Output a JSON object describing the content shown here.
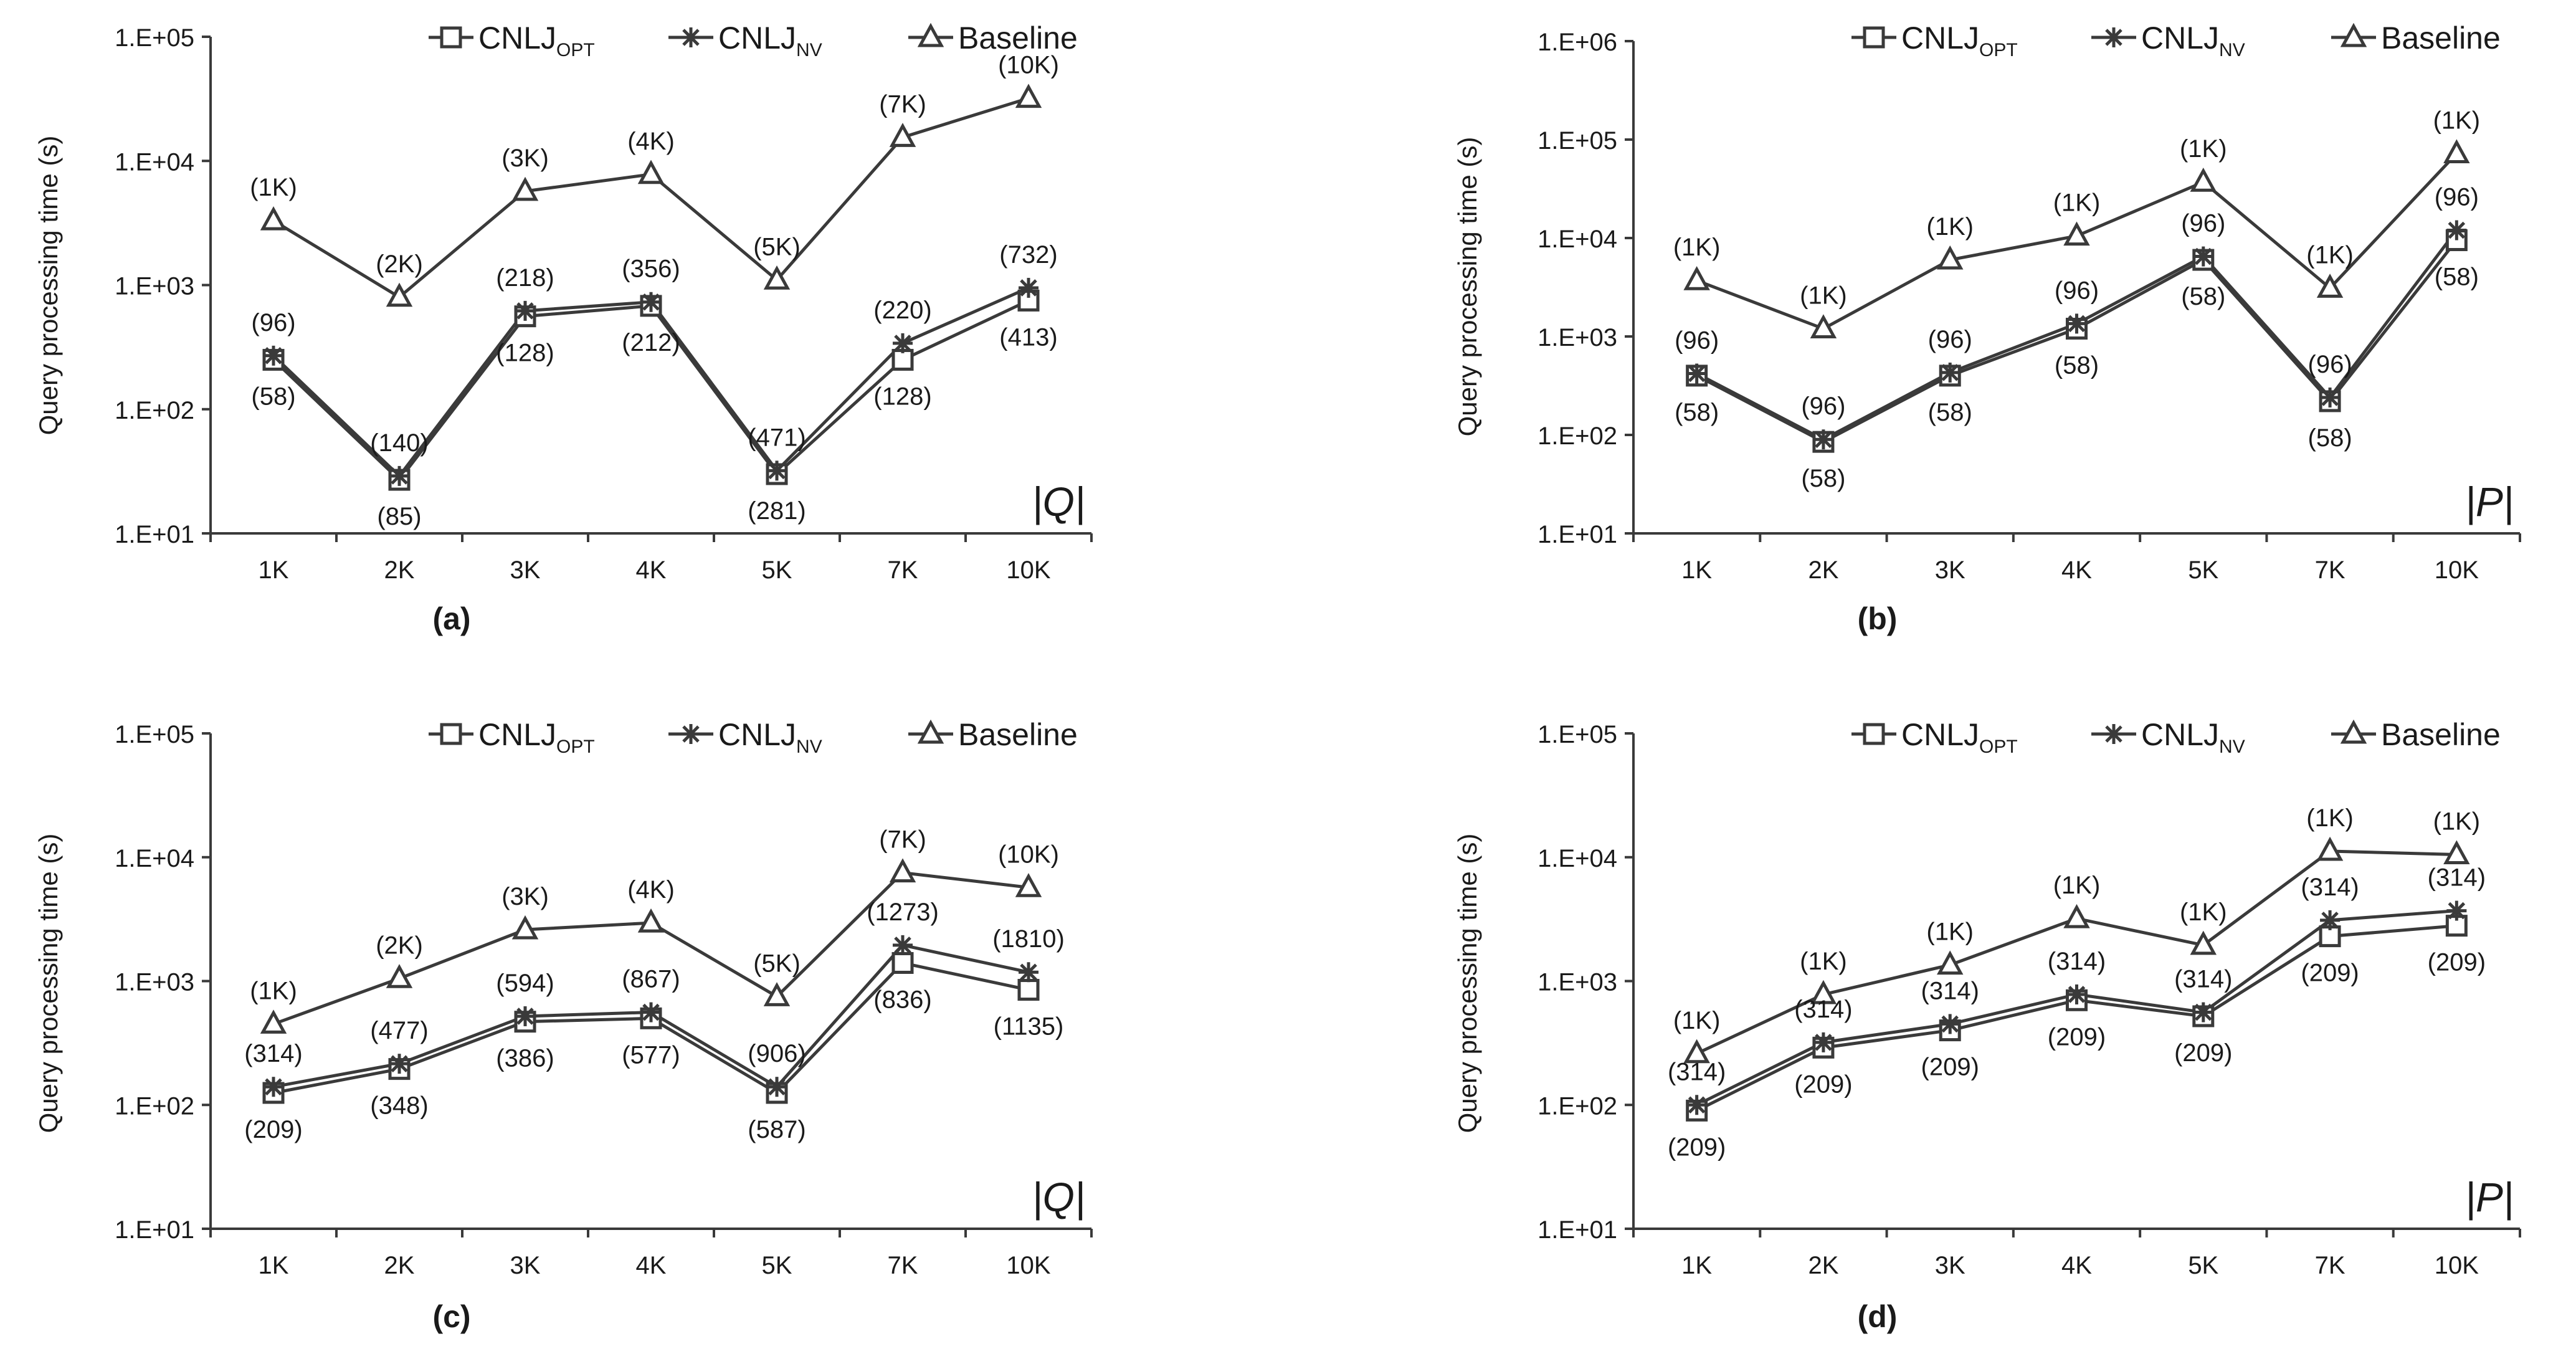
{
  "figure": {
    "line_color": "#3a3a3a",
    "text_color": "#1a1a1a",
    "background": "#ffffff"
  },
  "chart_data": [
    {
      "id": "a",
      "type": "line",
      "scale": "log",
      "panel_label": "(a)",
      "ylabel": "Query processing time (s)",
      "xlabel": "|Q|",
      "categories": [
        "1K",
        "2K",
        "3K",
        "4K",
        "5K",
        "7K",
        "10K"
      ],
      "yticks": [
        "1.E+01",
        "1.E+02",
        "1.E+03",
        "1.E+04",
        "1.E+05"
      ],
      "ylim_exp": [
        1,
        5
      ],
      "legend": [
        {
          "name": "CNLJ",
          "sub": "OPT",
          "marker": "square"
        },
        {
          "name": "CNLJ",
          "sub": "NV",
          "marker": "star"
        },
        {
          "name": "Baseline",
          "sub": "",
          "marker": "triangle"
        }
      ],
      "series": [
        {
          "name": "CNLJ_OPT",
          "marker": "square",
          "values": [
            250,
            27,
            560,
            680,
            30,
            250,
            750
          ]
        },
        {
          "name": "CNLJ_NV",
          "marker": "star",
          "values": [
            270,
            29,
            620,
            730,
            32,
            340,
            950
          ]
        },
        {
          "name": "Baseline",
          "marker": "triangle",
          "values": [
            3300,
            800,
            5700,
            7800,
            1100,
            15500,
            32000
          ]
        }
      ],
      "annotations": {
        "top": [
          "(1K)",
          "(2K)",
          "(3K)",
          "(4K)",
          "(5K)",
          "(7K)",
          "(10K)"
        ],
        "nv": [
          "(96)",
          "(140)",
          "(218)",
          "(356)",
          "(471)",
          "(220)",
          "(732)"
        ],
        "opt": [
          "(58)",
          "(85)",
          "(128)",
          "(212)",
          "(281)",
          "(128)",
          "(413)"
        ]
      }
    },
    {
      "id": "b",
      "type": "line",
      "scale": "log",
      "panel_label": "(b)",
      "ylabel": "Query processing time (s)",
      "xlabel": "|P|",
      "categories": [
        "1K",
        "2K",
        "3K",
        "4K",
        "5K",
        "7K",
        "10K"
      ],
      "yticks": [
        "1.E+01",
        "1.E+02",
        "1.E+03",
        "1.E+04",
        "1.E+05",
        "1.E+06"
      ],
      "ylim_exp": [
        1,
        6
      ],
      "legend": [
        {
          "name": "CNLJ",
          "sub": "OPT",
          "marker": "square"
        },
        {
          "name": "CNLJ",
          "sub": "NV",
          "marker": "star"
        },
        {
          "name": "Baseline",
          "sub": "",
          "marker": "triangle"
        }
      ],
      "series": [
        {
          "name": "CNLJ_OPT",
          "marker": "square",
          "values": [
            400,
            85,
            400,
            1200,
            6000,
            220,
            9500
          ]
        },
        {
          "name": "CNLJ_NV",
          "marker": "star",
          "values": [
            420,
            90,
            430,
            1350,
            6500,
            240,
            12000
          ]
        },
        {
          "name": "Baseline",
          "marker": "triangle",
          "values": [
            3700,
            1200,
            6000,
            10500,
            37000,
            3100,
            72000
          ]
        }
      ],
      "annotations": {
        "top": [
          "(1K)",
          "(1K)",
          "(1K)",
          "(1K)",
          "(1K)",
          "(1K)",
          "(1K)"
        ],
        "nv": [
          "(96)",
          "(96)",
          "(96)",
          "(96)",
          "(96)",
          "(96)",
          "(96)"
        ],
        "opt": [
          "(58)",
          "(58)",
          "(58)",
          "(58)",
          "(58)",
          "(58)",
          "(58)"
        ]
      }
    },
    {
      "id": "c",
      "type": "line",
      "scale": "log",
      "panel_label": "(c)",
      "ylabel": "Query processing time (s)",
      "xlabel": "|Q|",
      "categories": [
        "1K",
        "2K",
        "3K",
        "4K",
        "5K",
        "7K",
        "10K"
      ],
      "yticks": [
        "1.E+01",
        "1.E+02",
        "1.E+03",
        "1.E+04",
        "1.E+05"
      ],
      "ylim_exp": [
        1,
        5
      ],
      "legend": [
        {
          "name": "CNLJ",
          "sub": "OPT",
          "marker": "square"
        },
        {
          "name": "CNLJ",
          "sub": "NV",
          "marker": "star"
        },
        {
          "name": "Baseline",
          "sub": "",
          "marker": "triangle"
        }
      ],
      "series": [
        {
          "name": "CNLJ_OPT",
          "marker": "square",
          "values": [
            125,
            195,
            470,
            500,
            125,
            1400,
            850
          ]
        },
        {
          "name": "CNLJ_NV",
          "marker": "star",
          "values": [
            140,
            215,
            520,
            560,
            140,
            1950,
            1180
          ]
        },
        {
          "name": "Baseline",
          "marker": "triangle",
          "values": [
            450,
            1050,
            2600,
            2950,
            750,
            7500,
            5700
          ]
        }
      ],
      "annotations": {
        "top": [
          "(1K)",
          "(2K)",
          "(3K)",
          "(4K)",
          "(5K)",
          "(7K)",
          "(10K)"
        ],
        "nv": [
          "(314)",
          "(477)",
          "(594)",
          "(867)",
          "(906)",
          "(1273)",
          "(1810)"
        ],
        "opt": [
          "(209)",
          "(348)",
          "(386)",
          "(577)",
          "(587)",
          "(836)",
          "(1135)"
        ]
      }
    },
    {
      "id": "d",
      "type": "line",
      "scale": "log",
      "panel_label": "(d)",
      "ylabel": "Query processing time (s)",
      "xlabel": "|P|",
      "categories": [
        "1K",
        "2K",
        "3K",
        "4K",
        "5K",
        "7K",
        "10K"
      ],
      "yticks": [
        "1.E+01",
        "1.E+02",
        "1.E+03",
        "1.E+04",
        "1.E+05"
      ],
      "ylim_exp": [
        1,
        5
      ],
      "legend": [
        {
          "name": "CNLJ",
          "sub": "OPT",
          "marker": "square"
        },
        {
          "name": "CNLJ",
          "sub": "NV",
          "marker": "star"
        },
        {
          "name": "Baseline",
          "sub": "",
          "marker": "triangle"
        }
      ],
      "series": [
        {
          "name": "CNLJ_OPT",
          "marker": "square",
          "values": [
            90,
            290,
            400,
            700,
            520,
            2300,
            2800
          ]
        },
        {
          "name": "CNLJ_NV",
          "marker": "star",
          "values": [
            100,
            320,
            450,
            780,
            560,
            3100,
            3700
          ]
        },
        {
          "name": "Baseline",
          "marker": "triangle",
          "values": [
            260,
            780,
            1350,
            3200,
            1950,
            11200,
            10500
          ]
        }
      ],
      "annotations": {
        "top": [
          "(1K)",
          "(1K)",
          "(1K)",
          "(1K)",
          "(1K)",
          "(1K)",
          "(1K)"
        ],
        "nv": [
          "(314)",
          "(314)",
          "(314)",
          "(314)",
          "(314)",
          "(314)",
          "(314)"
        ],
        "opt": [
          "(209)",
          "(209)",
          "(209)",
          "(209)",
          "(209)",
          "(209)",
          "(209)"
        ]
      }
    }
  ]
}
